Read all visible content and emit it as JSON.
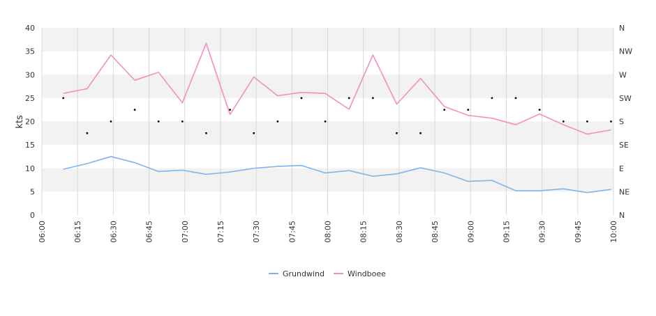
{
  "chart_data": {
    "type": "line",
    "ylabel": "kts",
    "ylim": [
      0,
      40
    ],
    "yticks": [
      0,
      5,
      10,
      15,
      20,
      25,
      30,
      35,
      40
    ],
    "right_axis_labels": [
      "N",
      "NE",
      "E",
      "SE",
      "S",
      "SW",
      "W",
      "NW",
      "N"
    ],
    "xlim": [
      "06:00",
      "10:00"
    ],
    "x_ticks": [
      "06:00",
      "06:15",
      "06:30",
      "06:45",
      "07:00",
      "07:15",
      "07:30",
      "07:45",
      "08:00",
      "08:15",
      "08:30",
      "08:45",
      "09:00",
      "09:15",
      "09:30",
      "09:45",
      "10:00"
    ],
    "x": [
      "06:09",
      "06:19",
      "06:29",
      "06:39",
      "06:49",
      "06:59",
      "07:09",
      "07:19",
      "07:29",
      "07:39",
      "07:49",
      "07:59",
      "08:09",
      "08:19",
      "08:29",
      "08:39",
      "08:49",
      "08:59",
      "09:09",
      "09:19",
      "09:29",
      "09:39",
      "09:49",
      "09:59"
    ],
    "series": [
      {
        "name": "Grundwind",
        "color": "#7cb5ec",
        "values": [
          9.8,
          11.0,
          12.5,
          11.2,
          9.3,
          9.6,
          8.7,
          9.2,
          10.0,
          10.4,
          10.6,
          9.0,
          9.5,
          8.3,
          8.8,
          10.1,
          9.0,
          7.2,
          7.4,
          5.2,
          5.2,
          5.6,
          4.8,
          5.5
        ]
      },
      {
        "name": "Windboee",
        "color": "#f28fc1",
        "values": [
          26.0,
          27.0,
          34.2,
          28.8,
          30.5,
          24.0,
          36.7,
          21.5,
          29.5,
          25.5,
          26.2,
          26.0,
          22.6,
          34.2,
          23.7,
          29.2,
          23.2,
          21.3,
          20.7,
          19.3,
          21.6,
          19.3,
          17.3,
          18.2
        ]
      }
    ],
    "direction_points": [
      {
        "time": "06:09",
        "direction": "SW"
      },
      {
        "time": "06:19",
        "direction": "SSE"
      },
      {
        "time": "06:29",
        "direction": "S"
      },
      {
        "time": "06:39",
        "direction": "SSW"
      },
      {
        "time": "06:49",
        "direction": "S"
      },
      {
        "time": "06:59",
        "direction": "S"
      },
      {
        "time": "07:09",
        "direction": "SSE"
      },
      {
        "time": "07:19",
        "direction": "SSW"
      },
      {
        "time": "07:29",
        "direction": "SSE"
      },
      {
        "time": "07:39",
        "direction": "S"
      },
      {
        "time": "07:49",
        "direction": "SW"
      },
      {
        "time": "07:59",
        "direction": "S"
      },
      {
        "time": "08:09",
        "direction": "SW"
      },
      {
        "time": "08:19",
        "direction": "SW"
      },
      {
        "time": "08:29",
        "direction": "SSE"
      },
      {
        "time": "08:39",
        "direction": "SSE"
      },
      {
        "time": "08:49",
        "direction": "SSW"
      },
      {
        "time": "08:59",
        "direction": "SSW"
      },
      {
        "time": "09:09",
        "direction": "SW"
      },
      {
        "time": "09:19",
        "direction": "SW"
      },
      {
        "time": "09:29",
        "direction": "SSW"
      },
      {
        "time": "09:39",
        "direction": "S"
      },
      {
        "time": "09:49",
        "direction": "S"
      },
      {
        "time": "09:59",
        "direction": "S"
      }
    ],
    "legend_position": "bottom-center",
    "grid": true,
    "band_color": "#f2f2f2",
    "grid_color": "#d8d8d8"
  }
}
